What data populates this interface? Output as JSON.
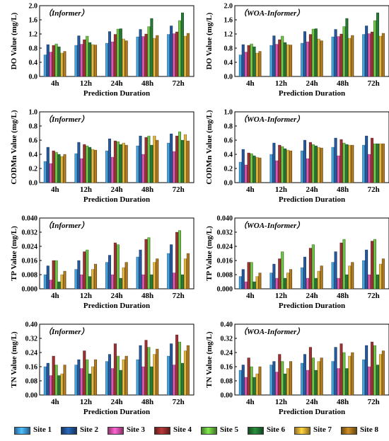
{
  "chart_data": [
    {
      "type": "bar",
      "panel": "DO-Informer",
      "title": "Informer",
      "xlabel": "Prediction Duration",
      "ylabel": "DO Value (mg/L)",
      "categories": [
        "4h",
        "12h",
        "24h",
        "48h",
        "72h"
      ],
      "ylim": [
        0,
        2.0
      ],
      "yticks": [
        "0.0",
        "0.4",
        "0.8",
        "1.2",
        "1.6",
        "2.0"
      ],
      "series": [
        {
          "name": "Site 1",
          "values": [
            0.61,
            0.88,
            0.94,
            1.12,
            1.19
          ]
        },
        {
          "name": "Site 2",
          "values": [
            0.9,
            1.15,
            1.27,
            1.33,
            1.43
          ]
        },
        {
          "name": "Site 3",
          "values": [
            0.69,
            0.91,
            0.98,
            1.13,
            1.21
          ]
        },
        {
          "name": "Site 4",
          "values": [
            0.88,
            1.04,
            1.19,
            1.2,
            1.26
          ]
        },
        {
          "name": "Site 5",
          "values": [
            0.92,
            1.14,
            1.34,
            1.41,
            1.58
          ]
        },
        {
          "name": "Site 6",
          "values": [
            0.84,
            0.96,
            1.35,
            1.64,
            1.8
          ]
        },
        {
          "name": "Site 7",
          "values": [
            0.66,
            0.9,
            1.06,
            1.08,
            1.14
          ]
        },
        {
          "name": "Site 8",
          "values": [
            0.71,
            0.89,
            1.01,
            1.16,
            1.22
          ]
        }
      ]
    },
    {
      "type": "bar",
      "panel": "DO-WOA-Informer",
      "title": "WOA-Informer",
      "xlabel": "Prediction Duration",
      "ylabel": "DO Value (mg/L)",
      "categories": [
        "4h",
        "12h",
        "24h",
        "48h",
        "72h"
      ],
      "ylim": [
        0,
        2.0
      ],
      "yticks": [
        "0.0",
        "0.4",
        "0.8",
        "1.2",
        "1.6",
        "2.0"
      ],
      "series": [
        {
          "name": "Site 1",
          "values": [
            0.61,
            0.88,
            0.94,
            1.12,
            1.19
          ]
        },
        {
          "name": "Site 2",
          "values": [
            0.9,
            1.15,
            1.27,
            1.33,
            1.43
          ]
        },
        {
          "name": "Site 3",
          "values": [
            0.69,
            0.91,
            0.98,
            1.13,
            1.21
          ]
        },
        {
          "name": "Site 4",
          "values": [
            0.88,
            1.04,
            1.19,
            1.2,
            1.26
          ]
        },
        {
          "name": "Site 5",
          "values": [
            0.92,
            1.14,
            1.34,
            1.41,
            1.58
          ]
        },
        {
          "name": "Site 6",
          "values": [
            0.84,
            0.96,
            1.35,
            1.64,
            1.8
          ]
        },
        {
          "name": "Site 7",
          "values": [
            0.66,
            0.9,
            1.06,
            1.08,
            1.14
          ]
        },
        {
          "name": "Site 8",
          "values": [
            0.71,
            0.89,
            1.01,
            1.16,
            1.22
          ]
        }
      ]
    },
    {
      "type": "bar",
      "panel": "CODMn-Informer",
      "title": "Informer",
      "xlabel": "Prediction Duration",
      "ylabel": "CODMn Value (mg/L)",
      "categories": [
        "4h",
        "12h",
        "24h",
        "48h",
        "72h"
      ],
      "ylim": [
        0,
        1.0
      ],
      "yticks": [
        "0.0",
        "0.2",
        "0.4",
        "0.6",
        "0.8",
        "1.0"
      ],
      "series": [
        {
          "name": "Site 1",
          "values": [
            0.3,
            0.41,
            0.45,
            0.52,
            0.56
          ]
        },
        {
          "name": "Site 2",
          "values": [
            0.5,
            0.57,
            0.62,
            0.66,
            0.69
          ]
        },
        {
          "name": "Site 3",
          "values": [
            0.27,
            0.34,
            0.36,
            0.4,
            0.44
          ]
        },
        {
          "name": "Site 4",
          "values": [
            0.45,
            0.54,
            0.59,
            0.64,
            0.66
          ]
        },
        {
          "name": "Site 5",
          "values": [
            0.43,
            0.52,
            0.58,
            0.66,
            0.72
          ]
        },
        {
          "name": "Site 6",
          "values": [
            0.4,
            0.5,
            0.54,
            0.53,
            0.6
          ]
        },
        {
          "name": "Site 7",
          "values": [
            0.37,
            0.47,
            0.56,
            0.66,
            0.68
          ]
        },
        {
          "name": "Site 8",
          "values": [
            0.4,
            0.46,
            0.53,
            0.6,
            0.59
          ]
        }
      ]
    },
    {
      "type": "bar",
      "panel": "CODMn-WOA-Informer",
      "title": "WOA-Informer",
      "xlabel": "Prediction Duration",
      "ylabel": "CODMn Value (mg/L)",
      "categories": [
        "4h",
        "12h",
        "24h",
        "48h",
        "72h"
      ],
      "ylim": [
        0,
        1.0
      ],
      "yticks": [
        "0.0",
        "0.2",
        "0.4",
        "0.6",
        "0.8",
        "1.0"
      ],
      "series": [
        {
          "name": "Site 1",
          "values": [
            0.29,
            0.4,
            0.45,
            0.5,
            0.53
          ]
        },
        {
          "name": "Site 2",
          "values": [
            0.47,
            0.56,
            0.6,
            0.63,
            0.66
          ]
        },
        {
          "name": "Site 3",
          "values": [
            0.25,
            0.31,
            0.34,
            0.38,
            0.4
          ]
        },
        {
          "name": "Site 4",
          "values": [
            0.42,
            0.53,
            0.57,
            0.61,
            0.63
          ]
        },
        {
          "name": "Site 5",
          "values": [
            0.41,
            0.51,
            0.54,
            0.56,
            0.55
          ]
        },
        {
          "name": "Site 6",
          "values": [
            0.38,
            0.48,
            0.52,
            0.54,
            0.55
          ]
        },
        {
          "name": "Site 7",
          "values": [
            0.36,
            0.46,
            0.5,
            0.53,
            0.55
          ]
        },
        {
          "name": "Site 8",
          "values": [
            0.35,
            0.45,
            0.49,
            0.53,
            0.55
          ]
        }
      ]
    },
    {
      "type": "bar",
      "panel": "TP-Informer",
      "title": "Informer",
      "xlabel": "Prediction Duration",
      "ylabel": "TP Value (mg/L)",
      "categories": [
        "4h",
        "12h",
        "24h",
        "48h",
        "72h"
      ],
      "ylim": [
        0,
        0.04
      ],
      "yticks": [
        "0.000",
        "0.008",
        "0.016",
        "0.024",
        "0.032",
        "0.040"
      ],
      "series": [
        {
          "name": "Site 1",
          "values": [
            0.008,
            0.011,
            0.015,
            0.018,
            0.02
          ]
        },
        {
          "name": "Site 2",
          "values": [
            0.013,
            0.016,
            0.019,
            0.022,
            0.025
          ]
        },
        {
          "name": "Site 3",
          "values": [
            0.005,
            0.008,
            0.008,
            0.008,
            0.009
          ]
        },
        {
          "name": "Site 4",
          "values": [
            0.016,
            0.021,
            0.026,
            0.028,
            0.032
          ]
        },
        {
          "name": "Site 5",
          "values": [
            0.016,
            0.022,
            0.025,
            0.029,
            0.033
          ]
        },
        {
          "name": "Site 6",
          "values": [
            0.004,
            0.007,
            0.006,
            0.008,
            0.008
          ]
        },
        {
          "name": "Site 7",
          "values": [
            0.008,
            0.011,
            0.012,
            0.015,
            0.017
          ]
        },
        {
          "name": "Site 8",
          "values": [
            0.01,
            0.014,
            0.015,
            0.017,
            0.02
          ]
        }
      ]
    },
    {
      "type": "bar",
      "panel": "TP-WOA-Informer",
      "title": "WOA-Informer",
      "xlabel": "Prediction Duration",
      "ylabel": "TP Value (mg/L)",
      "categories": [
        "4h",
        "12h",
        "24h",
        "48h",
        "72h"
      ],
      "ylim": [
        0,
        0.04
      ],
      "yticks": [
        "0.000",
        "0.008",
        "0.016",
        "0.024",
        "0.032",
        "0.040"
      ],
      "series": [
        {
          "name": "Site 1",
          "values": [
            0.007,
            0.009,
            0.012,
            0.015,
            0.016
          ]
        },
        {
          "name": "Site 2",
          "values": [
            0.011,
            0.014,
            0.018,
            0.021,
            0.022
          ]
        },
        {
          "name": "Site 3",
          "values": [
            0.004,
            0.006,
            0.006,
            0.006,
            0.008
          ]
        },
        {
          "name": "Site 4",
          "values": [
            0.015,
            0.017,
            0.023,
            0.026,
            0.027
          ]
        },
        {
          "name": "Site 5",
          "values": [
            0.015,
            0.021,
            0.025,
            0.028,
            0.028
          ]
        },
        {
          "name": "Site 6",
          "values": [
            0.004,
            0.006,
            0.006,
            0.008,
            0.008
          ]
        },
        {
          "name": "Site 7",
          "values": [
            0.007,
            0.009,
            0.01,
            0.013,
            0.014
          ]
        },
        {
          "name": "Site 8",
          "values": [
            0.009,
            0.011,
            0.013,
            0.015,
            0.017
          ]
        }
      ]
    },
    {
      "type": "bar",
      "panel": "TN-Informer",
      "title": "Informer",
      "xlabel": "Prediction Duration",
      "ylabel": "TN Value (mg/L)",
      "categories": [
        "4h",
        "12h",
        "24h",
        "48h",
        "72h"
      ],
      "ylim": [
        0,
        0.4
      ],
      "yticks": [
        "0.00",
        "0.08",
        "0.16",
        "0.24",
        "0.32",
        "0.40"
      ],
      "series": [
        {
          "name": "Site 1",
          "values": [
            0.16,
            0.17,
            0.19,
            0.2,
            0.22
          ]
        },
        {
          "name": "Site 2",
          "values": [
            0.18,
            0.2,
            0.23,
            0.28,
            0.29
          ]
        },
        {
          "name": "Site 3",
          "values": [
            0.11,
            0.15,
            0.15,
            0.16,
            0.17
          ]
        },
        {
          "name": "Site 4",
          "values": [
            0.22,
            0.25,
            0.29,
            0.31,
            0.34
          ]
        },
        {
          "name": "Site 5",
          "values": [
            0.17,
            0.2,
            0.22,
            0.27,
            0.3
          ]
        },
        {
          "name": "Site 6",
          "values": [
            0.11,
            0.12,
            0.14,
            0.16,
            0.18
          ]
        },
        {
          "name": "Site 7",
          "values": [
            0.12,
            0.16,
            0.2,
            0.23,
            0.25
          ]
        },
        {
          "name": "Site 8",
          "values": [
            0.17,
            0.2,
            0.22,
            0.26,
            0.28
          ]
        }
      ]
    },
    {
      "type": "bar",
      "panel": "TN-WOA-Informer",
      "title": "WOA-Informer",
      "xlabel": "Prediction Duration",
      "ylabel": "TN Value (mg/L)",
      "categories": [
        "4h",
        "12h",
        "24h",
        "48h",
        "72h"
      ],
      "ylim": [
        0,
        0.4
      ],
      "yticks": [
        "0.00",
        "0.08",
        "0.16",
        "0.24",
        "0.32",
        "0.40"
      ],
      "series": [
        {
          "name": "Site 1",
          "values": [
            0.14,
            0.17,
            0.18,
            0.19,
            0.2
          ]
        },
        {
          "name": "Site 2",
          "values": [
            0.17,
            0.19,
            0.23,
            0.27,
            0.28
          ]
        },
        {
          "name": "Site 3",
          "values": [
            0.1,
            0.13,
            0.14,
            0.15,
            0.16
          ]
        },
        {
          "name": "Site 4",
          "values": [
            0.21,
            0.23,
            0.27,
            0.29,
            0.3
          ]
        },
        {
          "name": "Site 5",
          "values": [
            0.16,
            0.19,
            0.21,
            0.24,
            0.28
          ]
        },
        {
          "name": "Site 6",
          "values": [
            0.1,
            0.12,
            0.14,
            0.15,
            0.17
          ]
        },
        {
          "name": "Site 7",
          "values": [
            0.12,
            0.15,
            0.19,
            0.22,
            0.23
          ]
        },
        {
          "name": "Site 8",
          "values": [
            0.16,
            0.19,
            0.21,
            0.24,
            0.25
          ]
        }
      ]
    }
  ],
  "legend": {
    "placement": "bottom",
    "items": [
      {
        "name": "Site 1",
        "color": "#3a8fd9"
      },
      {
        "name": "Site 2",
        "color": "#1f4e8c"
      },
      {
        "name": "Site 3",
        "color": "#d04a9c"
      },
      {
        "name": "Site 4",
        "color": "#8c2a2a"
      },
      {
        "name": "Site 5",
        "color": "#5fae3a"
      },
      {
        "name": "Site 6",
        "color": "#1e6b2e"
      },
      {
        "name": "Site 7",
        "color": "#e0a030"
      },
      {
        "name": "Site 8",
        "color": "#9a6a1a"
      }
    ]
  }
}
